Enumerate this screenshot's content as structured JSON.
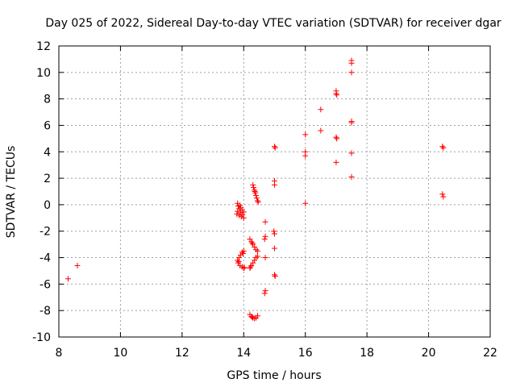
{
  "chart_data": {
    "type": "scatter",
    "title": "Day 025 of 2022, Sidereal Day-to-day VTEC variation (SDTVAR) for receiver dgar",
    "xlabel": "GPS time / hours",
    "ylabel": "SDTVAR / TECUs",
    "xlim": [
      8,
      22
    ],
    "ylim": [
      -10,
      12
    ],
    "xticks": [
      8,
      10,
      12,
      14,
      16,
      18,
      20,
      22
    ],
    "yticks": [
      -10,
      -8,
      -6,
      -4,
      -2,
      0,
      2,
      4,
      6,
      8,
      10,
      12
    ],
    "xtick_labels": [
      "8",
      "10",
      "12",
      "14",
      "16",
      "18",
      "20",
      "22"
    ],
    "ytick_labels": [
      "-10",
      "-8",
      "-6",
      "-4",
      "-2",
      "0",
      "2",
      "4",
      "6",
      "8",
      "10",
      "12"
    ],
    "grid": true,
    "marker": "+",
    "color": "#ff0000",
    "series": [
      {
        "name": "SDTVAR",
        "points": [
          [
            8.3,
            -5.6
          ],
          [
            8.6,
            -4.6
          ],
          [
            13.8,
            0.1
          ],
          [
            13.82,
            -0.1
          ],
          [
            13.85,
            -0.3
          ],
          [
            13.8,
            -0.5
          ],
          [
            13.78,
            -0.7
          ],
          [
            13.85,
            -0.8
          ],
          [
            13.9,
            -0.6
          ],
          [
            13.95,
            -0.4
          ],
          [
            13.9,
            -0.2
          ],
          [
            13.92,
            -0.9
          ],
          [
            14.0,
            -1.0
          ],
          [
            13.88,
            -0.05
          ],
          [
            13.96,
            -0.75
          ],
          [
            14.0,
            -0.55
          ],
          [
            13.85,
            -4.0
          ],
          [
            13.8,
            -4.2
          ],
          [
            13.82,
            -4.4
          ],
          [
            13.88,
            -4.6
          ],
          [
            13.95,
            -4.7
          ],
          [
            14.0,
            -4.8
          ],
          [
            13.9,
            -3.8
          ],
          [
            13.95,
            -3.6
          ],
          [
            14.0,
            -3.5
          ],
          [
            13.84,
            -4.3
          ],
          [
            13.98,
            -3.7
          ],
          [
            14.02,
            -4.75
          ],
          [
            14.3,
            1.5
          ],
          [
            14.32,
            1.3
          ],
          [
            14.35,
            1.1
          ],
          [
            14.38,
            0.9
          ],
          [
            14.4,
            0.7
          ],
          [
            14.42,
            0.5
          ],
          [
            14.45,
            0.3
          ],
          [
            14.47,
            0.2
          ],
          [
            14.36,
            1.0
          ],
          [
            14.2,
            -2.6
          ],
          [
            14.25,
            -2.8
          ],
          [
            14.3,
            -3.0
          ],
          [
            14.35,
            -3.2
          ],
          [
            14.4,
            -3.4
          ],
          [
            14.45,
            -3.5
          ],
          [
            14.28,
            -2.9
          ],
          [
            14.2,
            -4.8
          ],
          [
            14.25,
            -4.6
          ],
          [
            14.3,
            -4.4
          ],
          [
            14.35,
            -4.2
          ],
          [
            14.4,
            -4.0
          ],
          [
            14.45,
            -3.9
          ],
          [
            14.22,
            -4.7
          ],
          [
            14.2,
            -8.3
          ],
          [
            14.25,
            -8.45
          ],
          [
            14.3,
            -8.55
          ],
          [
            14.35,
            -8.6
          ],
          [
            14.4,
            -8.55
          ],
          [
            14.45,
            -8.4
          ],
          [
            14.28,
            -8.5
          ],
          [
            14.7,
            -1.3
          ],
          [
            14.7,
            -2.4
          ],
          [
            14.68,
            -2.6
          ],
          [
            14.7,
            -4.0
          ],
          [
            14.7,
            -6.5
          ],
          [
            14.68,
            -6.7
          ],
          [
            15.0,
            4.4
          ],
          [
            15.02,
            4.3
          ],
          [
            15.0,
            1.8
          ],
          [
            15.0,
            1.5
          ],
          [
            14.98,
            -2.0
          ],
          [
            15.0,
            -2.2
          ],
          [
            15.0,
            -3.3
          ],
          [
            15.0,
            -5.3
          ],
          [
            15.02,
            -5.4
          ],
          [
            16.0,
            5.3
          ],
          [
            16.0,
            4.0
          ],
          [
            16.0,
            3.7
          ],
          [
            16.0,
            0.1
          ],
          [
            16.5,
            7.2
          ],
          [
            16.5,
            5.6
          ],
          [
            17.0,
            8.6
          ],
          [
            17.0,
            8.4
          ],
          [
            17.02,
            8.3
          ],
          [
            17.0,
            5.1
          ],
          [
            17.02,
            5.0
          ],
          [
            17.0,
            3.2
          ],
          [
            17.5,
            10.9
          ],
          [
            17.5,
            10.7
          ],
          [
            17.5,
            10.0
          ],
          [
            17.5,
            6.3
          ],
          [
            17.5,
            6.2
          ],
          [
            17.5,
            3.9
          ],
          [
            17.5,
            2.1
          ],
          [
            20.45,
            4.4
          ],
          [
            20.48,
            4.3
          ],
          [
            20.45,
            0.8
          ],
          [
            20.48,
            0.6
          ]
        ]
      }
    ]
  }
}
